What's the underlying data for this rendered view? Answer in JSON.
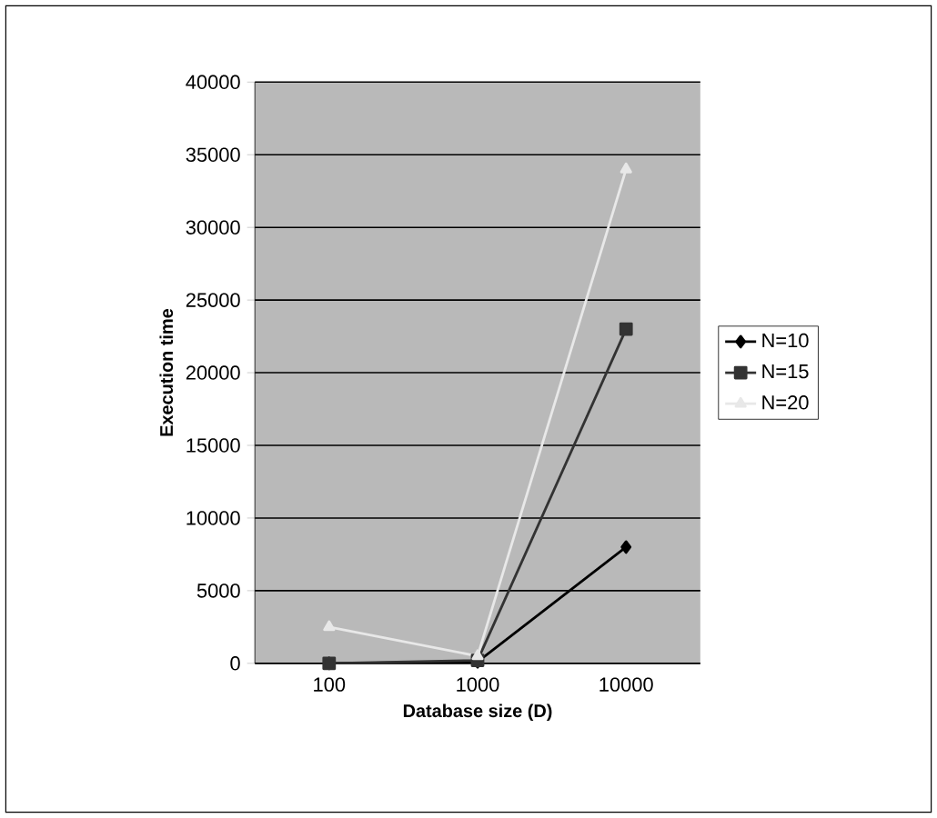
{
  "chart_data": {
    "type": "line",
    "xlabel": "Database size (D)",
    "ylabel": "Execution time",
    "categories": [
      "100",
      "1000",
      "10000"
    ],
    "series": [
      {
        "name": "N=10",
        "color": "#000000",
        "marker": "diamond",
        "values": [
          0,
          100,
          8000
        ]
      },
      {
        "name": "N=15",
        "color": "#333333",
        "marker": "square",
        "values": [
          0,
          200,
          23000
        ]
      },
      {
        "name": "N=20",
        "color": "#e8e8e8",
        "marker": "triangle",
        "values": [
          2500,
          500,
          34000
        ]
      }
    ],
    "ylim": [
      0,
      40000
    ],
    "yticks": [
      0,
      5000,
      10000,
      15000,
      20000,
      25000,
      30000,
      35000,
      40000
    ],
    "grid": "y",
    "legend": "right",
    "line_style": "solid"
  }
}
